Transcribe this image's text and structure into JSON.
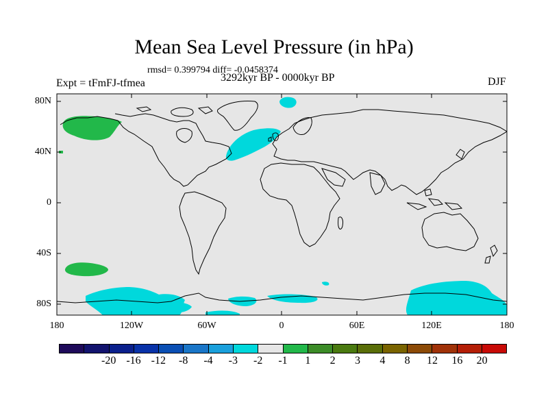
{
  "title": "Mean Sea Level Pressure (in hPa)",
  "stats": "rmsd= 0.399794 diff= -0.0458374",
  "experiment": "Expt = tFmFJ-tfmea",
  "period": "3292kyr BP - 0000kyr BP",
  "season": "DJF",
  "map": {
    "lat_labels": [
      "80N",
      "40N",
      "0",
      "40S",
      "80S"
    ],
    "lon_labels": [
      "180",
      "120W",
      "60W",
      "0",
      "60E",
      "120E",
      "180"
    ],
    "background_color": "#e6e6e6",
    "features": [
      {
        "name": "alaska-positive-anomaly",
        "bin": "1 to 2",
        "color": "#22b84a"
      },
      {
        "name": "south-pacific-positive-anomaly",
        "bin": "1 to 2",
        "color": "#22b84a"
      },
      {
        "name": "north-atlantic-negative-anomaly",
        "bin": "-2 to -1",
        "color": "#00d8dc"
      },
      {
        "name": "greenland-sea-negative-anomaly",
        "bin": "-2 to -1",
        "color": "#00d8dc"
      },
      {
        "name": "antarctic-negative-anomalies",
        "bin": "-2 to -1",
        "color": "#00d8dc"
      }
    ]
  },
  "colorbar": {
    "colors": [
      "#1e0a5a",
      "#12136e",
      "#0a208c",
      "#0832a8",
      "#0a4fb4",
      "#1a76c8",
      "#1aa0dc",
      "#00d8dc",
      "#e6e6e6",
      "#22b84a",
      "#3c8c28",
      "#4a7a10",
      "#5a6e08",
      "#7a6400",
      "#8c4a06",
      "#a03208",
      "#b41e06",
      "#c80a06"
    ],
    "labels": [
      "-20",
      "-16",
      "-12",
      "-8",
      "-4",
      "-3",
      "-2",
      "-1",
      "1",
      "2",
      "3",
      "4",
      "8",
      "12",
      "16",
      "20"
    ]
  }
}
